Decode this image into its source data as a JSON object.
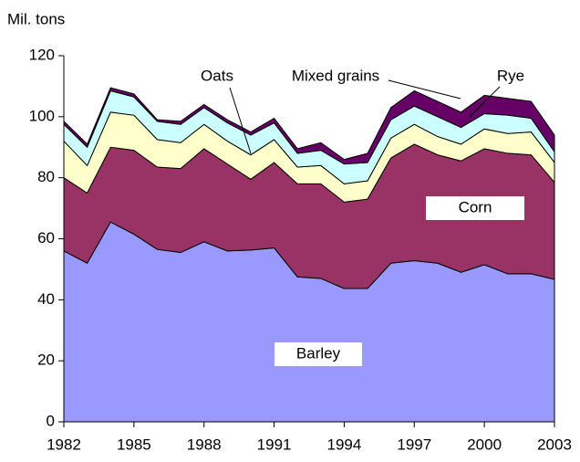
{
  "chart_data": {
    "type": "stacked-area",
    "y_axis_label": "Mil. tons",
    "x": [
      1982,
      1983,
      1984,
      1985,
      1986,
      1987,
      1988,
      1989,
      1990,
      1991,
      1992,
      1993,
      1994,
      1995,
      1996,
      1997,
      1998,
      1999,
      2000,
      2001,
      2002,
      2003
    ],
    "xlim": [
      1982,
      2003
    ],
    "xticks": [
      1982,
      1985,
      1988,
      1991,
      1994,
      1997,
      2000,
      2003
    ],
    "ylim": [
      0,
      120
    ],
    "yticks": [
      0,
      20,
      40,
      60,
      80,
      100,
      120
    ],
    "series": [
      {
        "name": "Barley",
        "color": "#9999ff",
        "values": [
          56,
          52,
          65.5,
          61.5,
          56.5,
          55.5,
          59,
          56,
          56.3,
          57,
          47.5,
          47,
          43.7,
          43.7,
          52,
          52.8,
          52,
          49,
          51.5,
          48.5,
          48.5,
          46.7
        ]
      },
      {
        "name": "Corn",
        "color": "#993366",
        "values": [
          24,
          23,
          24.5,
          27.5,
          27,
          27.5,
          30.5,
          28.5,
          23.2,
          28,
          30.5,
          31,
          28.3,
          29.3,
          34.5,
          38.2,
          35.5,
          36.5,
          38,
          39.5,
          39,
          31.8
        ]
      },
      {
        "name": "Oats",
        "color": "#ffffcc",
        "values": [
          12,
          9,
          11.5,
          11.5,
          9,
          8.5,
          8,
          7.5,
          8,
          7.5,
          5.5,
          6,
          6,
          6,
          6.5,
          6.5,
          6,
          5.5,
          6.5,
          6.5,
          7.5,
          6.5
        ]
      },
      {
        "name": "Mixed grains",
        "color": "#ccffff",
        "values": [
          5.5,
          6,
          7,
          6,
          6,
          6,
          5.5,
          6,
          6.5,
          5.5,
          4.5,
          5,
          6.5,
          6,
          6,
          6,
          6.5,
          5.5,
          5,
          6,
          4.5,
          3.5
        ]
      },
      {
        "name": "Rye",
        "color": "#660066",
        "values": [
          1,
          1,
          1,
          1,
          0.5,
          1,
          1,
          1,
          1,
          1.5,
          1.5,
          2.5,
          1.5,
          3,
          4,
          5,
          5,
          5,
          6,
          5.5,
          5.5,
          5.5
        ]
      }
    ]
  }
}
